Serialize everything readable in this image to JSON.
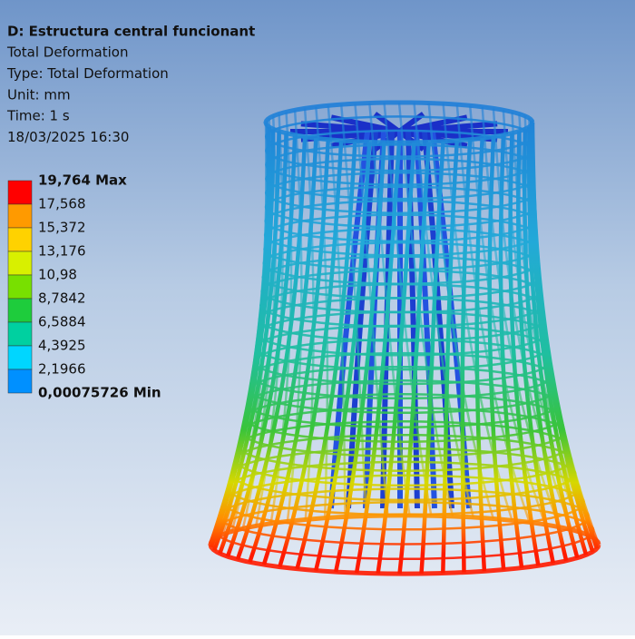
{
  "header": {
    "title": "D: Estructura central funcionant",
    "lines": [
      "Total Deformation",
      "Type: Total Deformation",
      "Unit: mm",
      "Time: 1 s",
      "18/03/2025 16:30"
    ]
  },
  "legend": {
    "labels": [
      "19,764 Max",
      "17,568",
      "15,372",
      "13,176",
      "10,98",
      "8,7842",
      "6,5884",
      "4,3925",
      "2,1966",
      "0,00075726 Min"
    ],
    "colors": [
      "#ff0000",
      "#ff9a00",
      "#ffd200",
      "#d8f000",
      "#78e000",
      "#1ecc3c",
      "#00d0a0",
      "#00d6ff",
      "#0090ff",
      "#0010e0"
    ]
  }
}
